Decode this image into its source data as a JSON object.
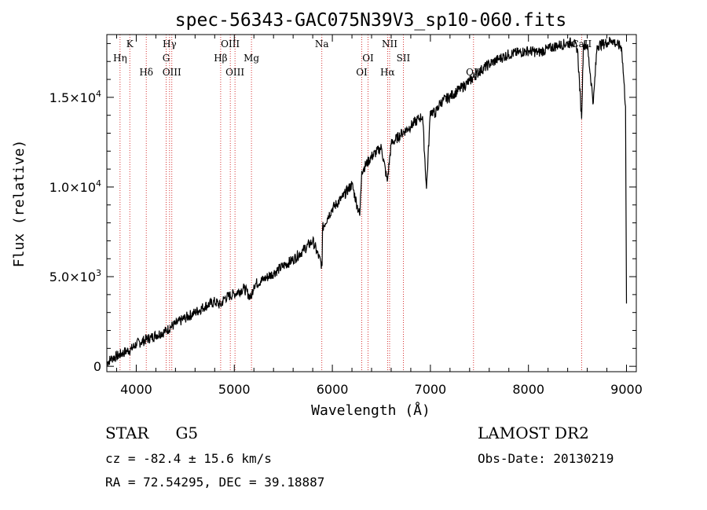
{
  "chart_data": {
    "type": "line",
    "title": "spec-56343-GAC075N39V3_sp10-060.fits",
    "xlabel": "Wavelength (Å)",
    "ylabel": "Flux (relative)",
    "xlim": [
      3700,
      9100
    ],
    "ylim": [
      -300,
      18500
    ],
    "x_ticks": [
      {
        "value": 4000,
        "label": "4000"
      },
      {
        "value": 5000,
        "label": "5000"
      },
      {
        "value": 6000,
        "label": "6000"
      },
      {
        "value": 7000,
        "label": "7000"
      },
      {
        "value": 8000,
        "label": "8000"
      },
      {
        "value": 9000,
        "label": "9000"
      }
    ],
    "y_ticks": [
      {
        "value": 0,
        "mantissa": "0",
        "exp": ""
      },
      {
        "value": 5000,
        "mantissa": "5.0×10",
        "exp": "3"
      },
      {
        "value": 10000,
        "mantissa": "1.0×10",
        "exp": "4"
      },
      {
        "value": 15000,
        "mantissa": "1.5×10",
        "exp": "4"
      }
    ],
    "series": [
      {
        "x": [
          3700,
          3750,
          3800,
          3850,
          3900,
          3950,
          4000,
          4050,
          4100,
          4150,
          4200,
          4250,
          4300,
          4350,
          4400,
          4500,
          4600,
          4700,
          4800,
          4860,
          4900,
          5000,
          5100,
          5170,
          5200,
          5300,
          5400,
          5500,
          5600,
          5700,
          5800,
          5895,
          5900,
          5950,
          6000,
          6100,
          6200,
          6280,
          6300,
          6400,
          6500,
          6560,
          6600,
          6700,
          6800,
          6880,
          6920,
          6960,
          7000,
          7050,
          7100,
          7200,
          7300,
          7400,
          7500,
          7600,
          7700,
          7800,
          7900,
          8000,
          8100,
          8200,
          8300,
          8400,
          8450,
          8500,
          8542,
          8560,
          8600,
          8662,
          8700,
          8750,
          8800,
          8850,
          8900,
          8950,
          8990,
          9000
        ],
        "y": [
          200,
          450,
          550,
          700,
          850,
          950,
          1250,
          1350,
          1500,
          1600,
          1750,
          1850,
          1950,
          2200,
          2350,
          2700,
          3000,
          3350,
          3600,
          3400,
          3800,
          4050,
          4350,
          3800,
          4550,
          4850,
          5200,
          5600,
          5950,
          6450,
          7000,
          5600,
          7700,
          8300,
          8800,
          9400,
          10150,
          8400,
          10900,
          11700,
          12200,
          10300,
          12400,
          12950,
          13400,
          13800,
          13950,
          9900,
          14250,
          14100,
          14700,
          15050,
          15450,
          15900,
          16450,
          16850,
          17150,
          17400,
          17500,
          17600,
          17500,
          17700,
          17900,
          18000,
          18100,
          17700,
          13800,
          17950,
          17900,
          14700,
          17900,
          17950,
          18050,
          18200,
          17950,
          17800,
          14500,
          3500
        ]
      }
    ],
    "spectral_lines": [
      {
        "name": "Hη",
        "wavelength": 3835,
        "row": 2
      },
      {
        "name": "K",
        "wavelength": 3934,
        "row": 1
      },
      {
        "name": "Hδ",
        "wavelength": 4102,
        "row": 3
      },
      {
        "name": "Hγ",
        "wavelength": 4340,
        "row": 1
      },
      {
        "name": "G",
        "wavelength": 4305,
        "row": 2
      },
      {
        "name": "OIII",
        "wavelength": 4363,
        "row": 3
      },
      {
        "name": "OIII",
        "wavelength": 4959,
        "row": 1
      },
      {
        "name": "Hβ",
        "wavelength": 4861,
        "row": 2
      },
      {
        "name": "OIII",
        "wavelength": 5007,
        "row": 3
      },
      {
        "name": "Mg",
        "wavelength": 5175,
        "row": 2
      },
      {
        "name": "Na",
        "wavelength": 5893,
        "row": 1
      },
      {
        "name": "OI",
        "wavelength": 6364,
        "row": 2
      },
      {
        "name": "OI",
        "wavelength": 6300,
        "row": 3
      },
      {
        "name": "NII",
        "wavelength": 6584,
        "row": 1
      },
      {
        "name": "SII",
        "wavelength": 6724,
        "row": 2
      },
      {
        "name": "Hα",
        "wavelength": 6563,
        "row": 3
      },
      {
        "name": "OII",
        "wavelength": 7440,
        "row": 3
      },
      {
        "name": "CaII",
        "wavelength": 8542,
        "row": 1
      }
    ],
    "colors": {
      "spectrum": "#000000",
      "line_markers": "#cc0000"
    }
  },
  "info": {
    "object_class": "STAR",
    "subclass": "G5",
    "redshift": "cz = -82.4 ± 15.6 km/s",
    "coords": "RA =  72.54295, DEC =  39.18887",
    "survey": "LAMOST DR2",
    "obs_date": "Obs-Date: 20130219"
  }
}
